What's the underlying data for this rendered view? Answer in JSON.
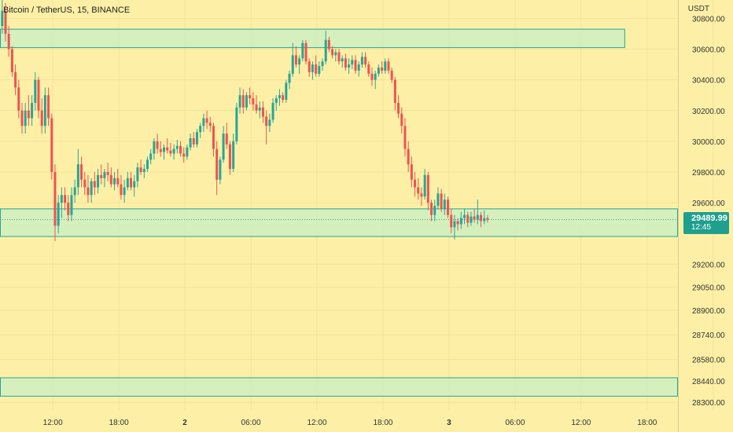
{
  "symbol": {
    "title": "Bitcoin / TetherUS, 15, BINANCE"
  },
  "currency": "USDT",
  "price_tag": {
    "price": "29489.99",
    "countdown": "12:45"
  },
  "colors": {
    "background": "#fdf0a6",
    "grid": "#f1e39a",
    "up": "#26a69a",
    "down": "#ef5350",
    "zone_fill": "#c8f0c4",
    "zone_border": "#27a592",
    "last_price": "#1f9f8e"
  },
  "chart_data": {
    "type": "candlestick",
    "y_ticks": [
      30800,
      30600,
      30400,
      30200,
      30000,
      29800,
      29600,
      29450,
      29200,
      29050,
      28900,
      28740,
      28580,
      28440,
      28300
    ],
    "y_tick_labels": [
      "30800.00",
      "30600.00",
      "30400.00",
      "30200.00",
      "30000.00",
      "29800.00",
      "29600.00",
      "",
      "29200.00",
      "29050.00",
      "28900.00",
      "28740.00",
      "28580.00",
      "28440.00",
      "28300.00"
    ],
    "x_ticks": [
      12,
      18,
      24,
      30,
      36,
      42,
      48,
      54,
      60,
      66,
      72
    ],
    "x_tick_labels": [
      "12:00",
      "18:00",
      "2",
      "06:00",
      "12:00",
      "18:00",
      "3",
      "06:00",
      "12:00",
      "18:00"
    ],
    "ylim": [
      28250,
      30920
    ],
    "xlim": [
      7.2,
      68.8
    ],
    "zones": [
      {
        "y_low": 30610,
        "y_high": 30730,
        "x_end": 64.0
      },
      {
        "y_low": 29380,
        "y_high": 29560,
        "x_end": null
      },
      {
        "y_low": 28340,
        "y_high": 28460,
        "x_end": null
      }
    ],
    "last_price": 29489.99,
    "candles": [
      [
        7.4,
        30750,
        30920,
        30700,
        30850
      ],
      [
        7.7,
        30850,
        30900,
        30650,
        30700
      ],
      [
        8.0,
        30700,
        30750,
        30550,
        30600
      ],
      [
        8.3,
        30600,
        30620,
        30420,
        30450
      ],
      [
        8.6,
        30450,
        30500,
        30300,
        30350
      ],
      [
        8.9,
        30350,
        30400,
        30150,
        30200
      ],
      [
        9.2,
        30200,
        30250,
        30050,
        30100
      ],
      [
        9.5,
        30100,
        30250,
        30050,
        30200
      ],
      [
        9.8,
        30200,
        30300,
        30100,
        30150
      ],
      [
        10.1,
        30150,
        30300,
        30100,
        30250
      ],
      [
        10.4,
        30250,
        30450,
        30200,
        30400
      ],
      [
        10.7,
        30400,
        30420,
        30150,
        30200
      ],
      [
        11.0,
        30200,
        30280,
        30050,
        30100
      ],
      [
        11.3,
        30100,
        30350,
        30050,
        30300
      ],
      [
        11.6,
        30300,
        30350,
        30100,
        30150
      ],
      [
        11.9,
        30150,
        30180,
        29750,
        29800
      ],
      [
        12.2,
        29800,
        29850,
        29350,
        29450
      ],
      [
        12.5,
        29450,
        29650,
        29400,
        29600
      ],
      [
        12.8,
        29600,
        29700,
        29500,
        29650
      ],
      [
        13.1,
        29650,
        29700,
        29550,
        29600
      ],
      [
        13.4,
        29600,
        29650,
        29480,
        29520
      ],
      [
        13.7,
        29520,
        29700,
        29480,
        29650
      ],
      [
        14.0,
        29650,
        29750,
        29600,
        29700
      ],
      [
        14.3,
        29700,
        29950,
        29650,
        29850
      ],
      [
        14.6,
        29850,
        29900,
        29700,
        29750
      ],
      [
        14.9,
        29750,
        29800,
        29650,
        29700
      ],
      [
        15.2,
        29700,
        29780,
        29600,
        29650
      ],
      [
        15.5,
        29650,
        29760,
        29600,
        29740
      ],
      [
        15.8,
        29740,
        29800,
        29650,
        29700
      ],
      [
        16.1,
        29700,
        29820,
        29660,
        29780
      ],
      [
        16.4,
        29780,
        29850,
        29720,
        29760
      ],
      [
        16.7,
        29760,
        29820,
        29700,
        29800
      ],
      [
        17.0,
        29800,
        29860,
        29740,
        29780
      ],
      [
        17.3,
        29780,
        29830,
        29700,
        29720
      ],
      [
        17.6,
        29720,
        29800,
        29680,
        29760
      ],
      [
        17.9,
        29760,
        29820,
        29700,
        29720
      ],
      [
        18.2,
        29720,
        29780,
        29620,
        29650
      ],
      [
        18.5,
        29650,
        29750,
        29600,
        29700
      ],
      [
        18.8,
        29700,
        29800,
        29680,
        29760
      ],
      [
        19.1,
        29760,
        29800,
        29680,
        29700
      ],
      [
        19.4,
        29700,
        29780,
        29640,
        29740
      ],
      [
        19.7,
        29740,
        29860,
        29700,
        29830
      ],
      [
        20.0,
        29830,
        29880,
        29780,
        29800
      ],
      [
        20.3,
        29800,
        29850,
        29760,
        29820
      ],
      [
        20.6,
        29820,
        29900,
        29800,
        29880
      ],
      [
        20.9,
        29880,
        29950,
        29850,
        29920
      ],
      [
        21.2,
        29920,
        30020,
        29880,
        30000
      ],
      [
        21.5,
        30000,
        30050,
        29920,
        29950
      ],
      [
        21.8,
        29950,
        30000,
        29900,
        29930
      ],
      [
        22.1,
        29930,
        29980,
        29880,
        29960
      ],
      [
        22.4,
        29960,
        30020,
        29920,
        29940
      ],
      [
        22.7,
        29940,
        29990,
        29900,
        29920
      ],
      [
        23.0,
        29920,
        29980,
        29880,
        29950
      ],
      [
        23.3,
        29950,
        30010,
        29920,
        29970
      ],
      [
        23.6,
        29970,
        30000,
        29900,
        29920
      ],
      [
        23.9,
        29920,
        29960,
        29860,
        29900
      ],
      [
        24.2,
        29900,
        29980,
        29880,
        29960
      ],
      [
        24.5,
        29960,
        30050,
        29940,
        30020
      ],
      [
        24.8,
        30020,
        30060,
        29960,
        29980
      ],
      [
        25.1,
        29980,
        30080,
        29960,
        30060
      ],
      [
        25.4,
        30060,
        30120,
        30020,
        30100
      ],
      [
        25.7,
        30100,
        30180,
        30060,
        30150
      ],
      [
        26.0,
        30150,
        30200,
        30080,
        30120
      ],
      [
        26.3,
        30120,
        30160,
        30060,
        30100
      ],
      [
        26.6,
        30100,
        30120,
        29900,
        29950
      ],
      [
        26.9,
        29950,
        30000,
        29650,
        29750
      ],
      [
        27.2,
        29750,
        29900,
        29720,
        29880
      ],
      [
        27.5,
        29880,
        30100,
        29860,
        30050
      ],
      [
        27.8,
        30050,
        30120,
        29950,
        29980
      ],
      [
        28.1,
        29980,
        30000,
        29780,
        29820
      ],
      [
        28.4,
        29820,
        30050,
        29800,
        30000
      ],
      [
        28.7,
        30000,
        30250,
        29980,
        30220
      ],
      [
        29.0,
        30220,
        30350,
        30180,
        30300
      ],
      [
        29.3,
        30300,
        30340,
        30180,
        30220
      ],
      [
        29.6,
        30220,
        30320,
        30200,
        30300
      ],
      [
        29.9,
        30300,
        30350,
        30240,
        30280
      ],
      [
        30.2,
        30280,
        30320,
        30200,
        30240
      ],
      [
        30.5,
        30240,
        30300,
        30180,
        30200
      ],
      [
        30.8,
        30200,
        30260,
        30150,
        30220
      ],
      [
        31.1,
        30220,
        30260,
        30120,
        30160
      ],
      [
        31.4,
        30160,
        30200,
        29980,
        30100
      ],
      [
        31.7,
        30100,
        30180,
        30060,
        30140
      ],
      [
        32.0,
        30140,
        30280,
        30120,
        30250
      ],
      [
        32.3,
        30250,
        30300,
        30200,
        30280
      ],
      [
        32.6,
        30280,
        30340,
        30230,
        30300
      ],
      [
        32.9,
        30300,
        30320,
        30250,
        30270
      ],
      [
        33.2,
        30270,
        30400,
        30250,
        30380
      ],
      [
        33.5,
        30380,
        30460,
        30340,
        30440
      ],
      [
        33.8,
        30440,
        30640,
        30420,
        30560
      ],
      [
        34.1,
        30560,
        30620,
        30480,
        30500
      ],
      [
        34.4,
        30500,
        30560,
        30440,
        30540
      ],
      [
        34.7,
        30540,
        30660,
        30520,
        30640
      ],
      [
        35.0,
        30640,
        30660,
        30500,
        30520
      ],
      [
        35.3,
        30520,
        30540,
        30420,
        30450
      ],
      [
        35.6,
        30450,
        30520,
        30400,
        30500
      ],
      [
        35.9,
        30500,
        30560,
        30420,
        30440
      ],
      [
        36.2,
        30440,
        30520,
        30420,
        30490
      ],
      [
        36.5,
        30490,
        30540,
        30460,
        30520
      ],
      [
        36.8,
        30520,
        30720,
        30500,
        30660
      ],
      [
        37.1,
        30660,
        30680,
        30580,
        30600
      ],
      [
        37.4,
        30600,
        30620,
        30540,
        30560
      ],
      [
        37.7,
        30560,
        30600,
        30520,
        30580
      ],
      [
        38.0,
        30580,
        30600,
        30500,
        30520
      ],
      [
        38.3,
        30520,
        30560,
        30480,
        30540
      ],
      [
        38.6,
        30540,
        30570,
        30460,
        30480
      ],
      [
        38.9,
        30480,
        30540,
        30440,
        30500
      ],
      [
        39.2,
        30500,
        30560,
        30470,
        30530
      ],
      [
        39.5,
        30530,
        30560,
        30440,
        30460
      ],
      [
        39.8,
        30460,
        30520,
        30420,
        30500
      ],
      [
        40.1,
        30500,
        30580,
        30480,
        30550
      ],
      [
        40.4,
        30550,
        30580,
        30480,
        30500
      ],
      [
        40.7,
        30500,
        30520,
        30420,
        30440
      ],
      [
        41.0,
        30440,
        30480,
        30360,
        30400
      ],
      [
        41.3,
        30400,
        30460,
        30340,
        30440
      ],
      [
        41.6,
        30440,
        30500,
        30420,
        30480
      ],
      [
        41.9,
        30480,
        30520,
        30440,
        30460
      ],
      [
        42.2,
        30460,
        30540,
        30440,
        30520
      ],
      [
        42.5,
        30520,
        30540,
        30440,
        30460
      ],
      [
        42.8,
        30460,
        30480,
        30380,
        30400
      ],
      [
        43.1,
        30400,
        30420,
        30200,
        30250
      ],
      [
        43.4,
        30250,
        30300,
        30150,
        30180
      ],
      [
        43.7,
        30180,
        30220,
        30050,
        30100
      ],
      [
        44.0,
        30100,
        30150,
        29900,
        29950
      ],
      [
        44.3,
        29950,
        30000,
        29800,
        29850
      ],
      [
        44.6,
        29850,
        29900,
        29700,
        29750
      ],
      [
        44.9,
        29750,
        29800,
        29640,
        29700
      ],
      [
        45.2,
        29700,
        29760,
        29620,
        29660
      ],
      [
        45.5,
        29660,
        29700,
        29580,
        29640
      ],
      [
        45.8,
        29640,
        29820,
        29620,
        29780
      ],
      [
        46.1,
        29780,
        29800,
        29550,
        29600
      ],
      [
        46.4,
        29600,
        29620,
        29480,
        29520
      ],
      [
        46.7,
        29520,
        29620,
        29480,
        29580
      ],
      [
        47.0,
        29580,
        29700,
        29560,
        29660
      ],
      [
        47.3,
        29660,
        29690,
        29540,
        29560
      ],
      [
        47.6,
        29560,
        29660,
        29520,
        29620
      ],
      [
        47.9,
        29620,
        29640,
        29500,
        29520
      ],
      [
        48.2,
        29520,
        29560,
        29400,
        29440
      ],
      [
        48.5,
        29440,
        29520,
        29360,
        29480
      ],
      [
        48.8,
        29480,
        29500,
        29420,
        29460
      ],
      [
        49.1,
        29460,
        29540,
        29430,
        29500
      ],
      [
        49.4,
        29500,
        29560,
        29460,
        29520
      ],
      [
        49.7,
        29520,
        29540,
        29440,
        29470
      ],
      [
        50.0,
        29470,
        29540,
        29450,
        29510
      ],
      [
        50.3,
        29510,
        29560,
        29470,
        29490
      ],
      [
        50.6,
        29490,
        29620,
        29460,
        29520
      ],
      [
        50.9,
        29520,
        29540,
        29440,
        29480
      ],
      [
        51.2,
        29480,
        29550,
        29460,
        29500
      ],
      [
        51.5,
        29500,
        29520,
        29470,
        29490
      ]
    ]
  }
}
